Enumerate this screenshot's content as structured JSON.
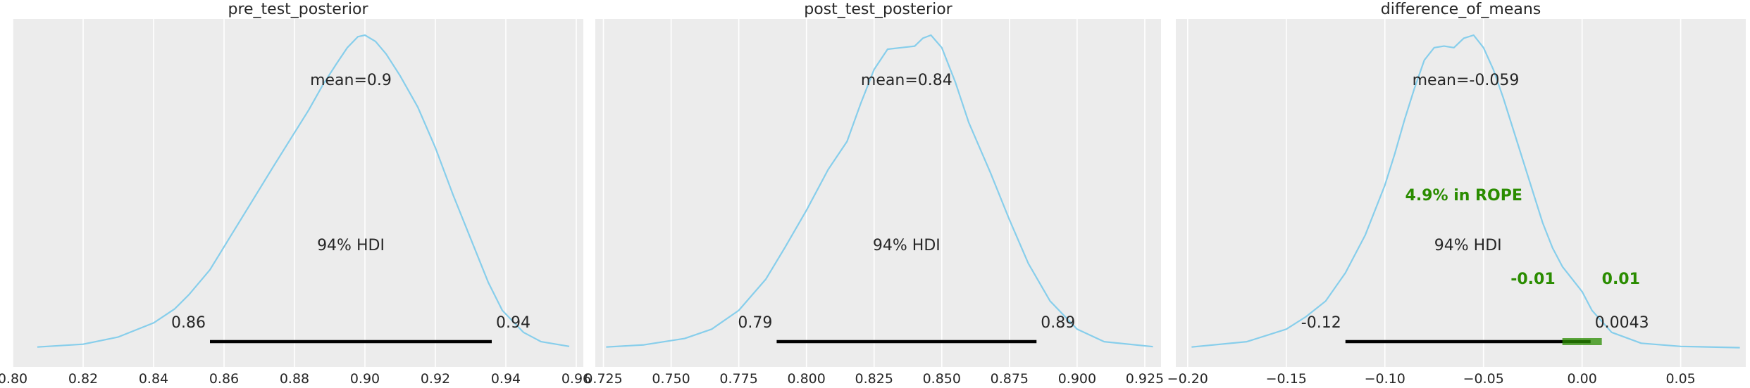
{
  "chart_data": [
    {
      "type": "area",
      "title": "pre_test_posterior",
      "xlim": [
        0.8,
        0.962
      ],
      "xticks": [
        0.8,
        0.82,
        0.84,
        0.86,
        0.88,
        0.9,
        0.92,
        0.94,
        0.96
      ],
      "xtick_labels": [
        "0.80",
        "0.82",
        "0.84",
        "0.86",
        "0.88",
        "0.90",
        "0.92",
        "0.94",
        "0.96"
      ],
      "density": {
        "x": [
          0.807,
          0.82,
          0.83,
          0.84,
          0.846,
          0.85,
          0.856,
          0.862,
          0.868,
          0.874,
          0.879,
          0.884,
          0.888,
          0.892,
          0.895,
          0.898,
          0.9,
          0.903,
          0.906,
          0.91,
          0.915,
          0.92,
          0.925,
          0.93,
          0.935,
          0.939,
          0.945,
          0.95,
          0.958
        ],
        "y": [
          0.003,
          0.012,
          0.035,
          0.08,
          0.125,
          0.17,
          0.25,
          0.36,
          0.47,
          0.58,
          0.67,
          0.76,
          0.84,
          0.91,
          0.96,
          0.995,
          1.0,
          0.98,
          0.94,
          0.87,
          0.77,
          0.64,
          0.49,
          0.35,
          0.21,
          0.12,
          0.05,
          0.02,
          0.005
        ]
      },
      "mean_label": "mean=0.9",
      "hdi": {
        "low": 0.856,
        "high": 0.936,
        "low_label": "0.86",
        "high_label": "0.94",
        "label": "94% HDI"
      }
    },
    {
      "type": "area",
      "title": "post_test_posterior",
      "xlim": [
        0.722,
        0.931
      ],
      "xticks": [
        0.725,
        0.75,
        0.775,
        0.8,
        0.825,
        0.85,
        0.875,
        0.9,
        0.925
      ],
      "xtick_labels": [
        "0.725",
        "0.750",
        "0.775",
        "0.800",
        "0.825",
        "0.850",
        "0.875",
        "0.900",
        "0.925"
      ],
      "density": {
        "x": [
          0.726,
          0.74,
          0.755,
          0.765,
          0.775,
          0.785,
          0.792,
          0.8,
          0.808,
          0.815,
          0.82,
          0.825,
          0.83,
          0.835,
          0.84,
          0.843,
          0.846,
          0.85,
          0.855,
          0.86,
          0.868,
          0.875,
          0.882,
          0.89,
          0.9,
          0.91,
          0.928
        ],
        "y": [
          0.003,
          0.01,
          0.03,
          0.06,
          0.12,
          0.22,
          0.32,
          0.44,
          0.57,
          0.66,
          0.78,
          0.89,
          0.955,
          0.96,
          0.965,
          0.99,
          1.0,
          0.96,
          0.85,
          0.72,
          0.56,
          0.41,
          0.27,
          0.15,
          0.06,
          0.02,
          0.004
        ]
      },
      "mean_label": "mean=0.84",
      "hdi": {
        "low": 0.789,
        "high": 0.885,
        "low_label": "0.79",
        "high_label": "0.89",
        "label": "94% HDI"
      }
    },
    {
      "type": "area",
      "title": "difference_of_means",
      "xlim": [
        -0.206,
        0.083
      ],
      "xticks": [
        -0.2,
        -0.15,
        -0.1,
        -0.05,
        0.0,
        0.05
      ],
      "xtick_labels": [
        "−0.20",
        "−0.15",
        "−0.10",
        "−0.05",
        "0.00",
        "0.05"
      ],
      "density": {
        "x": [
          -0.198,
          -0.17,
          -0.15,
          -0.14,
          -0.13,
          -0.12,
          -0.11,
          -0.1,
          -0.095,
          -0.09,
          -0.085,
          -0.08,
          -0.075,
          -0.07,
          -0.065,
          -0.06,
          -0.055,
          -0.05,
          -0.045,
          -0.04,
          -0.035,
          -0.03,
          -0.025,
          -0.02,
          -0.015,
          -0.01,
          -0.005,
          0.0,
          0.005,
          0.015,
          0.03,
          0.05,
          0.08
        ],
        "y": [
          0.003,
          0.02,
          0.06,
          0.1,
          0.15,
          0.24,
          0.36,
          0.52,
          0.62,
          0.73,
          0.83,
          0.92,
          0.96,
          0.965,
          0.96,
          0.99,
          1.0,
          0.96,
          0.89,
          0.8,
          0.7,
          0.6,
          0.5,
          0.4,
          0.32,
          0.26,
          0.22,
          0.18,
          0.12,
          0.05,
          0.015,
          0.005,
          0.001
        ]
      },
      "mean_label": "mean=-0.059",
      "hdi": {
        "low": -0.12,
        "high": 0.0043,
        "low_label": "-0.12",
        "high_label": "0.0043",
        "label": "94% HDI"
      },
      "rope": {
        "low": -0.01,
        "high": 0.01,
        "low_label": "-0.01",
        "high_label": "0.01",
        "label": "4.9% in ROPE"
      }
    }
  ],
  "colors": {
    "background": "#ececec",
    "grid": "#ffffff",
    "density": "#87ceeb",
    "hdi": "#000000",
    "rope": "#2a8c00",
    "text": "#262626"
  }
}
